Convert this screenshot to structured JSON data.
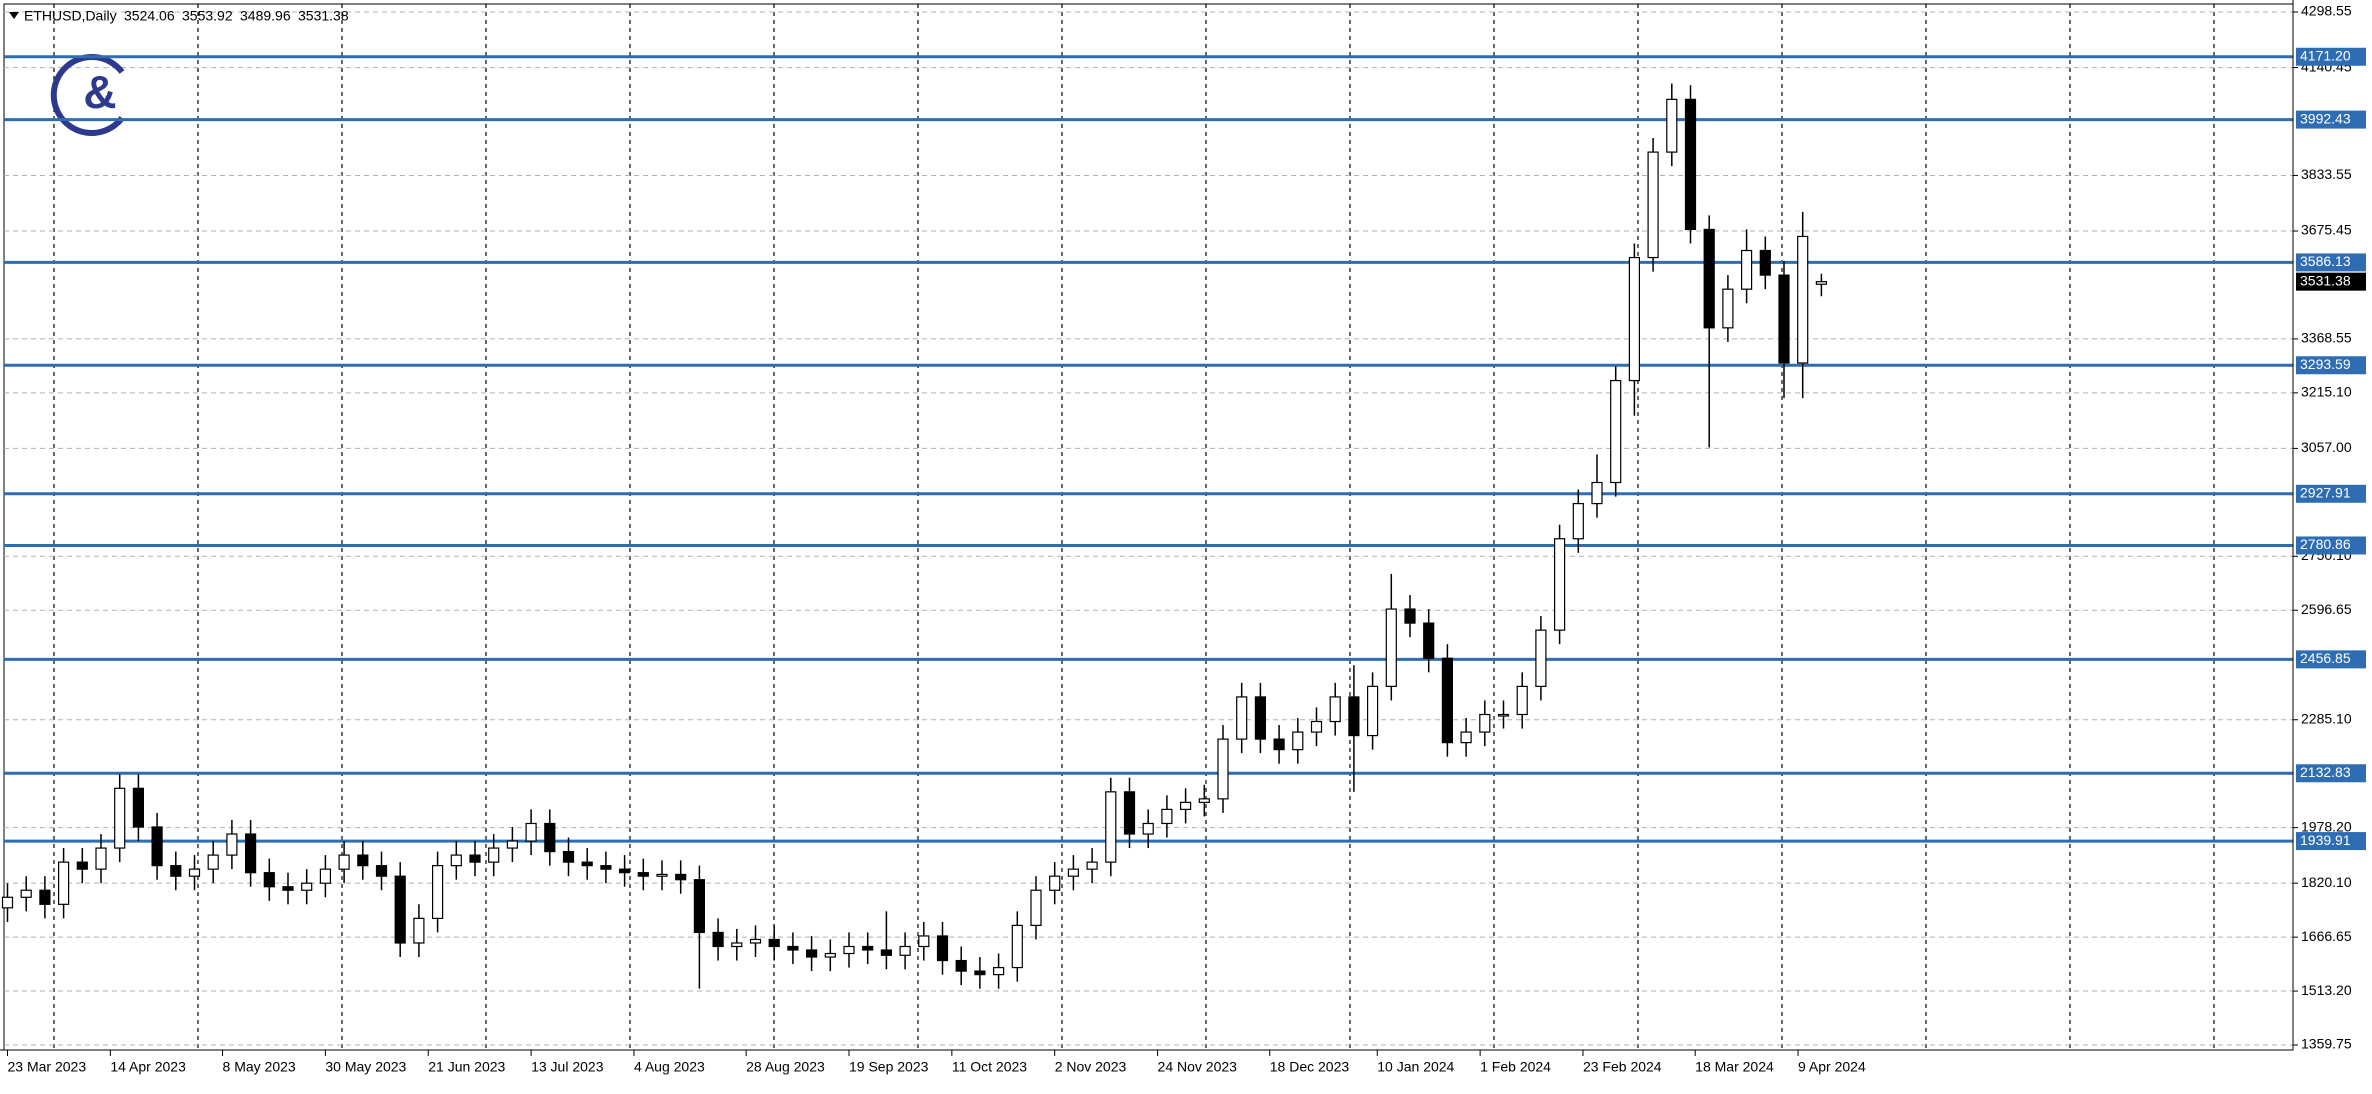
{
  "chart_data": {
    "type": "candlestick",
    "title": "ETHUSD,Daily",
    "x": [
      0,
      4,
      8,
      12,
      16,
      20,
      24,
      28,
      32,
      36,
      40,
      44,
      48,
      52,
      56,
      60,
      64,
      68,
      72,
      76,
      80,
      84,
      88,
      92,
      96,
      100,
      104,
      108,
      112,
      116,
      120,
      124,
      128,
      132,
      136,
      140,
      144,
      148,
      152,
      156,
      160,
      164,
      168,
      172,
      176,
      180,
      184,
      188,
      192,
      196,
      200,
      204,
      208,
      212,
      216,
      220,
      224,
      228,
      232,
      236,
      240,
      244,
      248,
      252,
      256,
      260,
      264,
      268,
      272,
      276,
      280,
      284,
      288,
      292,
      296,
      300,
      304,
      308,
      312,
      316,
      320,
      324,
      328,
      332,
      336,
      340,
      344,
      348,
      352,
      356,
      360,
      364,
      368,
      372,
      376,
      380,
      384,
      388
    ],
    "open": [
      1750,
      1780,
      1800,
      1760,
      1880,
      1860,
      1920,
      2090,
      1980,
      1870,
      1840,
      1860,
      1900,
      1960,
      1850,
      1810,
      1800,
      1820,
      1860,
      1900,
      1870,
      1840,
      1650,
      1720,
      1870,
      1900,
      1880,
      1920,
      1940,
      1990,
      1910,
      1880,
      1870,
      1860,
      1850,
      1840,
      1845,
      1830,
      1680,
      1640,
      1650,
      1660,
      1640,
      1630,
      1610,
      1620,
      1640,
      1630,
      1615,
      1640,
      1670,
      1600,
      1570,
      1560,
      1580,
      1700,
      1800,
      1840,
      1860,
      1880,
      2080,
      1960,
      1990,
      2030,
      2050,
      2060,
      2230,
      2350,
      2230,
      2200,
      2250,
      2280,
      2350,
      2240,
      2380,
      2600,
      2560,
      2460,
      2220,
      2250,
      2300,
      2300,
      2380,
      2540,
      2800,
      2900,
      2960,
      3250,
      3600,
      3900,
      4050,
      3680,
      3400,
      3510,
      3620,
      3550,
      3300,
      3524.06
    ],
    "high": [
      1820,
      1840,
      1840,
      1920,
      1920,
      1960,
      2130,
      2130,
      2020,
      1910,
      1900,
      1940,
      2000,
      2000,
      1890,
      1850,
      1860,
      1900,
      1940,
      1940,
      1910,
      1880,
      1760,
      1910,
      1940,
      1940,
      1960,
      1980,
      2030,
      2030,
      1950,
      1920,
      1910,
      1900,
      1890,
      1885,
      1885,
      1870,
      1720,
      1690,
      1700,
      1700,
      1680,
      1670,
      1660,
      1680,
      1680,
      1740,
      1680,
      1710,
      1710,
      1640,
      1610,
      1620,
      1740,
      1840,
      1880,
      1900,
      1920,
      2120,
      2120,
      2030,
      2070,
      2090,
      2100,
      2270,
      2390,
      2390,
      2270,
      2290,
      2320,
      2390,
      2440,
      2420,
      2700,
      2640,
      2600,
      2500,
      2290,
      2340,
      2340,
      2420,
      2580,
      2840,
      2940,
      3040,
      3290,
      3640,
      3940,
      4095,
      4090,
      3720,
      3550,
      3680,
      3660,
      3590,
      3730,
      3553.92
    ],
    "low": [
      1710,
      1740,
      1720,
      1720,
      1820,
      1820,
      1880,
      1940,
      1830,
      1800,
      1800,
      1820,
      1860,
      1810,
      1770,
      1760,
      1760,
      1780,
      1820,
      1830,
      1800,
      1610,
      1610,
      1680,
      1830,
      1840,
      1840,
      1880,
      1900,
      1870,
      1840,
      1830,
      1820,
      1810,
      1800,
      1800,
      1790,
      1520,
      1600,
      1600,
      1610,
      1600,
      1590,
      1570,
      1570,
      1580,
      1590,
      1575,
      1575,
      1600,
      1560,
      1530,
      1520,
      1520,
      1540,
      1660,
      1760,
      1800,
      1820,
      1840,
      1920,
      1920,
      1950,
      1990,
      2010,
      2020,
      2190,
      2190,
      2160,
      2160,
      2210,
      2240,
      2080,
      2200,
      2340,
      2520,
      2420,
      2180,
      2180,
      2210,
      2260,
      2260,
      2340,
      2500,
      2760,
      2860,
      2920,
      3150,
      3560,
      3860,
      3640,
      3060,
      3360,
      3470,
      3510,
      3200,
      3200,
      3489.96
    ],
    "close": [
      1780,
      1800,
      1760,
      1880,
      1860,
      1920,
      2090,
      1980,
      1870,
      1840,
      1860,
      1900,
      1960,
      1850,
      1810,
      1800,
      1820,
      1860,
      1900,
      1870,
      1840,
      1650,
      1720,
      1870,
      1900,
      1880,
      1920,
      1940,
      1990,
      1910,
      1880,
      1870,
      1860,
      1850,
      1840,
      1845,
      1830,
      1680,
      1640,
      1650,
      1660,
      1640,
      1630,
      1610,
      1620,
      1640,
      1630,
      1615,
      1640,
      1670,
      1600,
      1570,
      1560,
      1580,
      1700,
      1800,
      1840,
      1860,
      1880,
      2080,
      1960,
      1990,
      2030,
      2050,
      2060,
      2230,
      2350,
      2230,
      2200,
      2250,
      2280,
      2350,
      2240,
      2380,
      2600,
      2560,
      2460,
      2220,
      2250,
      2300,
      2300,
      2380,
      2540,
      2800,
      2900,
      2960,
      3250,
      3600,
      3900,
      4050,
      3680,
      3400,
      3510,
      3620,
      3550,
      3300,
      3660,
      3531.38
    ],
    "up_color": "#ffffff",
    "down_color": "#000000",
    "xlim": [
      -1,
      480
    ],
    "xticks": [
      {
        "value": 0,
        "label": "23 Mar 2023"
      },
      {
        "value": 22,
        "label": "14 Apr 2023"
      },
      {
        "value": 46,
        "label": "8 May 2023"
      },
      {
        "value": 68,
        "label": "30 May 2023"
      },
      {
        "value": 90,
        "label": "21 Jun 2023"
      },
      {
        "value": 112,
        "label": "13 Jul 2023"
      },
      {
        "value": 134,
        "label": "4 Aug 2023"
      },
      {
        "value": 158,
        "label": "28 Aug 2023"
      },
      {
        "value": 180,
        "label": "19 Sep 2023"
      },
      {
        "value": 202,
        "label": "11 Oct 2023"
      },
      {
        "value": 224,
        "label": "2 Nov 2023"
      },
      {
        "value": 246,
        "label": "24 Nov 2023"
      },
      {
        "value": 270,
        "label": "18 Dec 2023"
      },
      {
        "value": 293,
        "label": "10 Jan 2024"
      },
      {
        "value": 315,
        "label": "1 Feb 2024"
      },
      {
        "value": 337,
        "label": "23 Feb 2024"
      },
      {
        "value": 361,
        "label": "18 Mar 2024"
      },
      {
        "value": 383,
        "label": "9 Apr 2024"
      }
    ],
    "ylim": [
      1359.75,
      4298.55
    ],
    "yticks": [
      4298.55,
      4140.45,
      3833.55,
      3675.45,
      3368.55,
      {
        "value": 3215.1,
        "label": "3215.10"
      },
      {
        "value": 3057,
        "label": "3057.00"
      },
      {
        "value": 2750.1,
        "label": "2750.10"
      },
      2596.65,
      {
        "value": 2285.1,
        "label": "2285.10"
      },
      {
        "value": 1978.2,
        "label": "1978.20"
      },
      {
        "value": 1820.1,
        "label": "1820.10"
      },
      1666.65,
      {
        "value": 1513.2,
        "label": "1513.20"
      },
      1359.75
    ],
    "levels": [
      {
        "value": 4171.2,
        "label": "4171.20"
      },
      3992.43,
      3586.13,
      3293.59,
      2927.91,
      2780.86,
      2456.85,
      2132.83,
      1939.91
    ],
    "level_color": "#2f6db3",
    "grid": true
  }
}
